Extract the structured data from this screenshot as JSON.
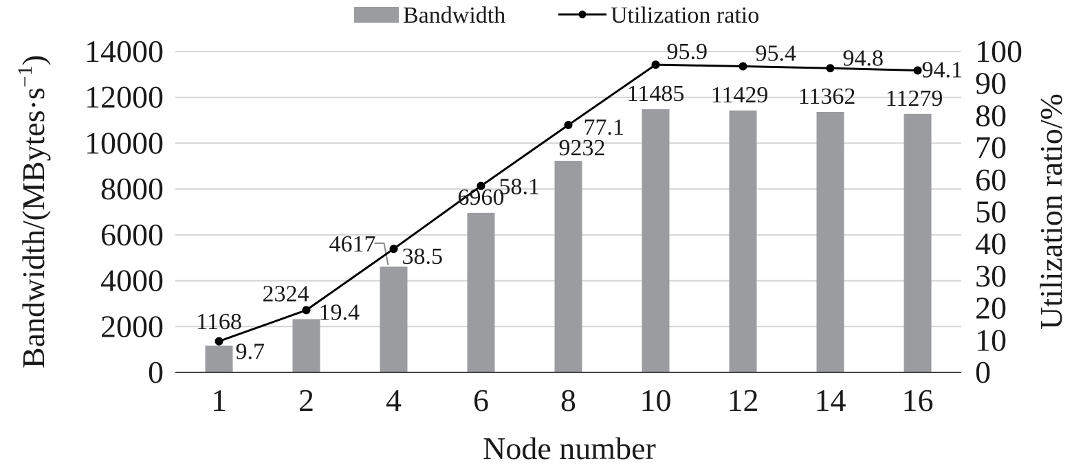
{
  "chart_data": {
    "type": "bar",
    "categories": [
      "1",
      "2",
      "4",
      "6",
      "8",
      "10",
      "12",
      "14",
      "16"
    ],
    "series": [
      {
        "name": "Bandwidth",
        "type": "bar",
        "axis": "left",
        "color": "#9b9ca0",
        "values": [
          1168,
          2324,
          4617,
          6960,
          9232,
          11485,
          11429,
          11362,
          11279
        ],
        "labels": [
          "1168",
          "2324",
          "4617",
          "6960",
          "9232",
          "11485",
          "11429",
          "11362",
          "11279"
        ]
      },
      {
        "name": "Utilization ratio",
        "type": "line",
        "axis": "right",
        "color": "#000000",
        "values": [
          9.7,
          19.4,
          38.5,
          58.1,
          77.1,
          95.9,
          95.4,
          94.8,
          94.1
        ],
        "labels": [
          "9.7",
          "19.4",
          "38.5",
          "58.1",
          "77.1",
          "95.9",
          "95.4",
          "94.8",
          "94.1"
        ]
      }
    ],
    "xlabel": "Node number",
    "ylabel": "Bandwidth/(MBytes·s",
    "ylabel_superscript": "−1",
    "ylabel_close": ")",
    "y2label": "Utilization ratio/%",
    "ylim": [
      0,
      14000
    ],
    "y2lim": [
      0,
      100
    ],
    "yticks": [
      "0",
      "2000",
      "4000",
      "6000",
      "8000",
      "10000",
      "12000",
      "14000"
    ],
    "y2ticks": [
      "0",
      "10",
      "20",
      "30",
      "40",
      "50",
      "60",
      "70",
      "80",
      "90",
      "100"
    ],
    "grid": true,
    "legend": "top-center"
  }
}
